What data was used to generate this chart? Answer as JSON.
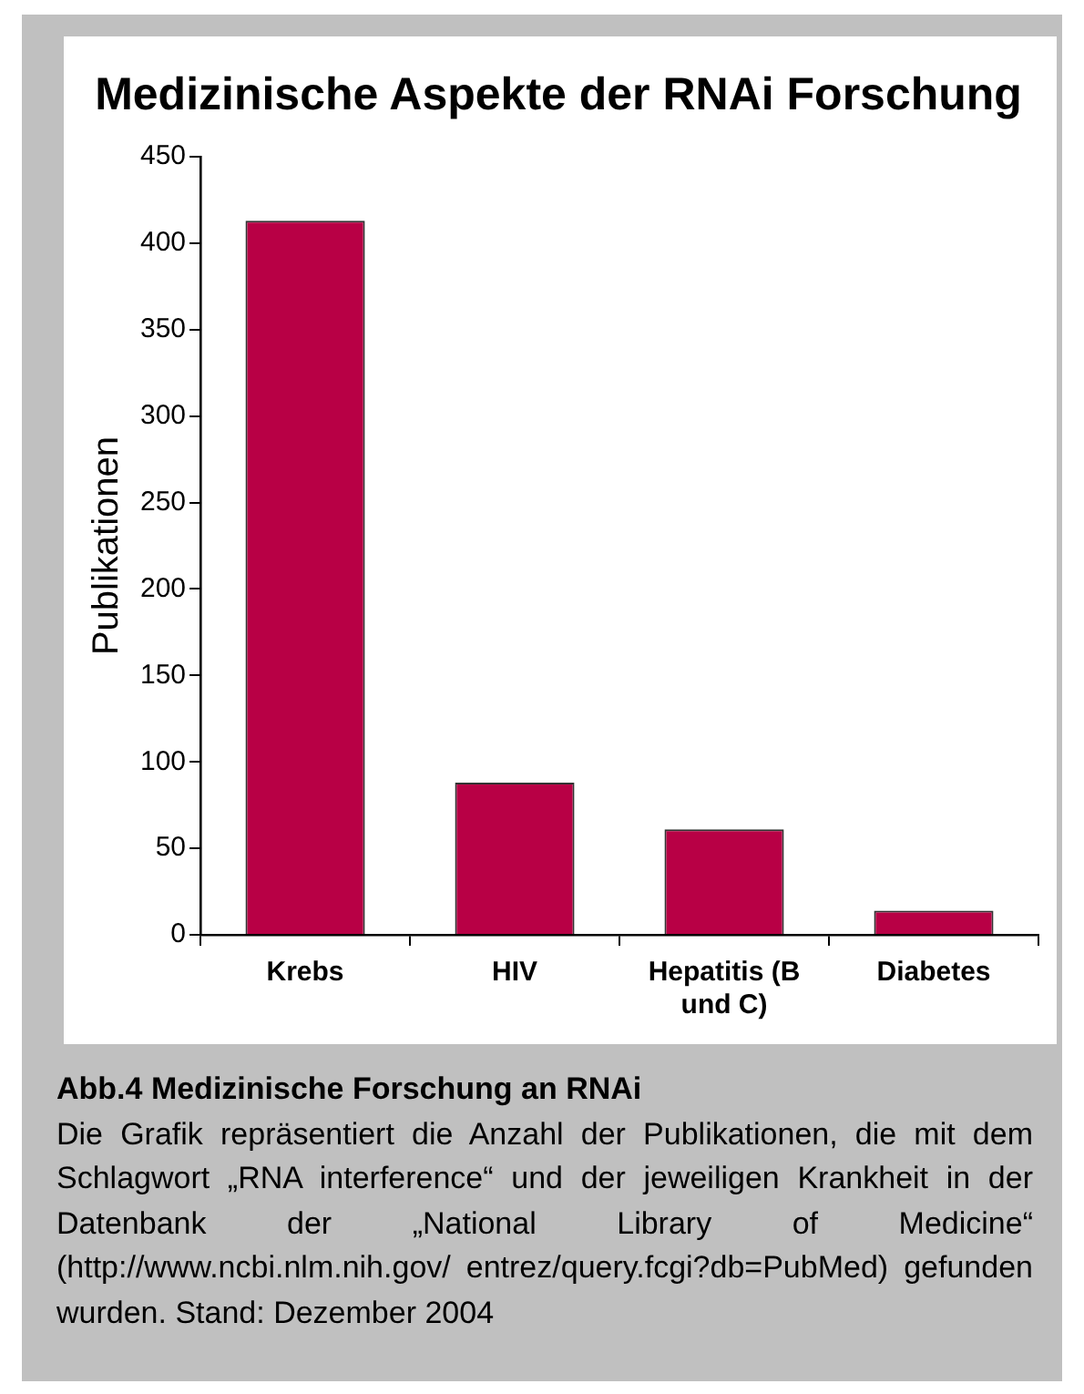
{
  "chart_data": {
    "type": "bar",
    "title": "Medizinische Aspekte der RNAi Forschung",
    "ylabel": "Publikationen",
    "categories": [
      "Krebs",
      "HIV",
      "Hepatitis (B und C)",
      "Diabetes"
    ],
    "values": [
      413,
      88,
      61,
      14
    ],
    "color": "#b80045",
    "ylim": [
      0,
      450
    ],
    "yticks": [
      0,
      50,
      100,
      150,
      200,
      250,
      300,
      350,
      400,
      450
    ],
    "annotations": [
      "Abb.4 Medizinische Forschung an RNAi",
      "Die Grafik repräsentiert die Anzahl der Publikationen, die mit dem Schlagwort „RNA interference“ und der jeweiligen Krankheit in der Datenbank der „National Library of Medicine“ (http://www.ncbi.nlm.nih.gov/ entrez/query.fcgi?db=PubMed) gefunden wurden. Stand: Dezember 2004"
    ]
  }
}
